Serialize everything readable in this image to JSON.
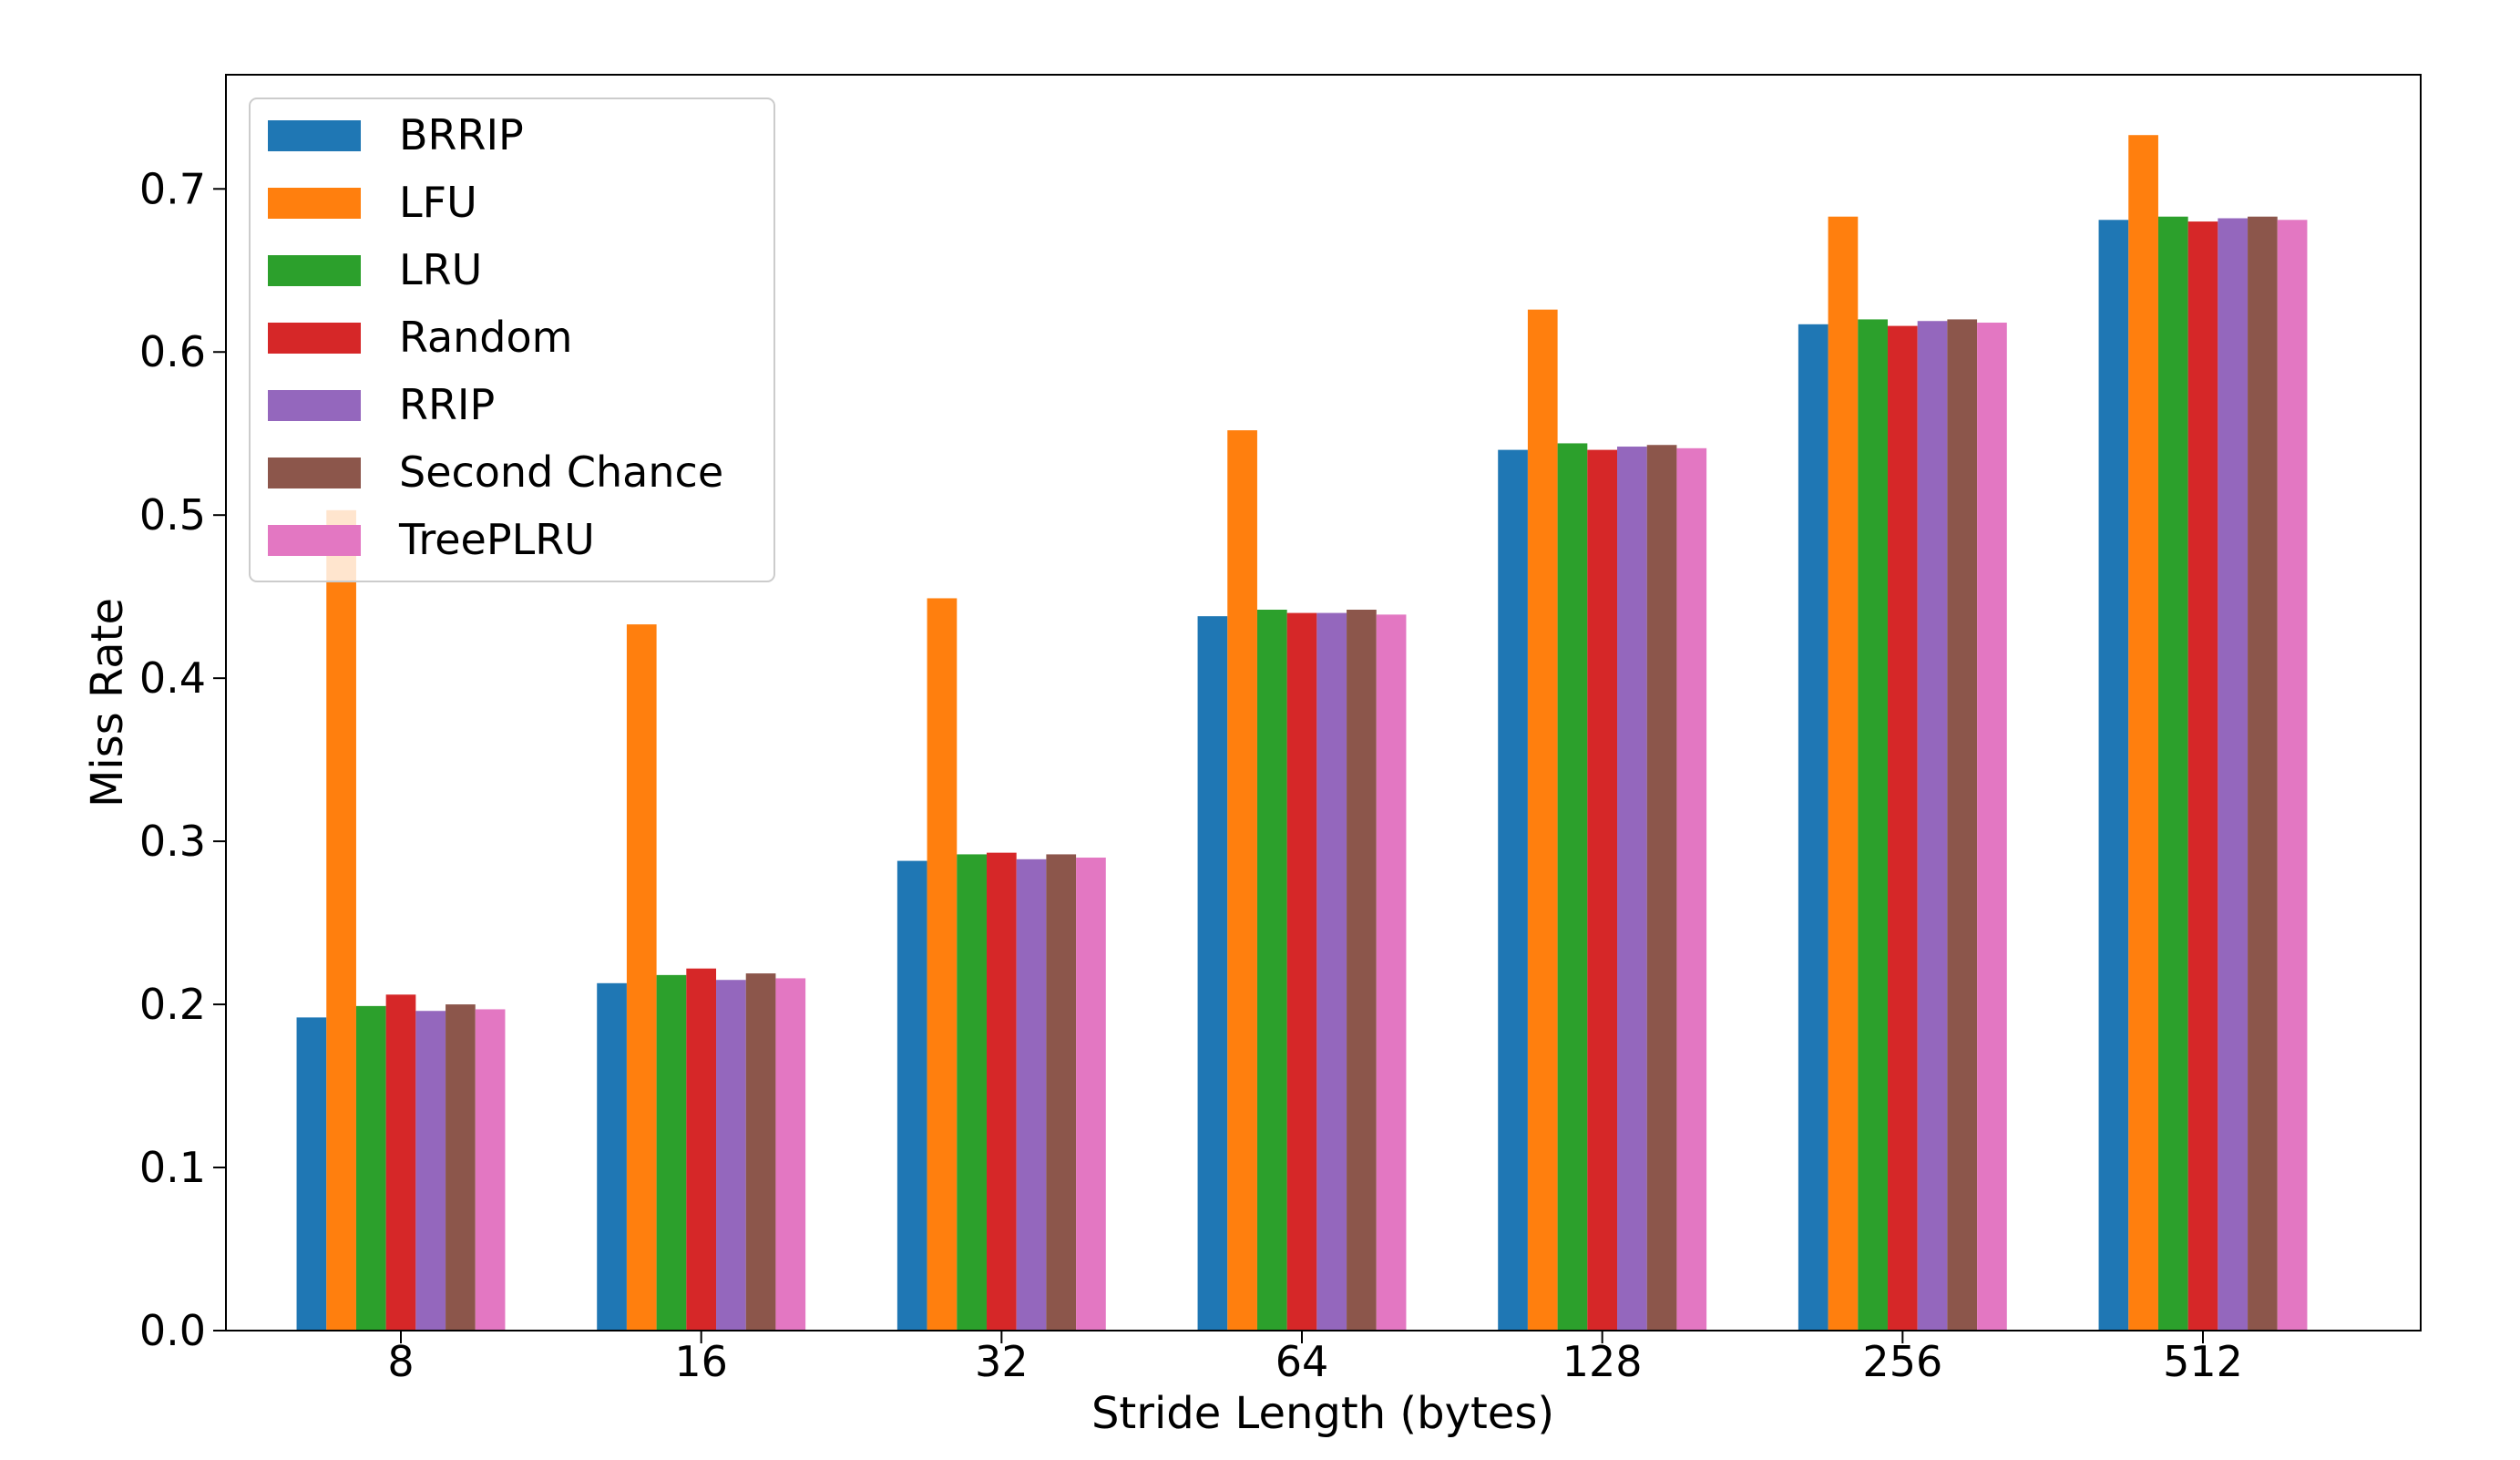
{
  "chart_data": {
    "type": "bar",
    "title": "",
    "xlabel": "Stride Length (bytes)",
    "ylabel": "Miss Rate",
    "categories": [
      "8",
      "16",
      "32",
      "64",
      "128",
      "256",
      "512"
    ],
    "ylim": [
      0,
      0.77
    ],
    "yticks": [
      "0.0",
      "0.1",
      "0.2",
      "0.3",
      "0.4",
      "0.5",
      "0.6",
      "0.7"
    ],
    "grid": false,
    "legend_position": "top-left",
    "series": [
      {
        "name": "BRRIP",
        "color": "#1f77b4",
        "values": [
          0.192,
          0.213,
          0.288,
          0.438,
          0.54,
          0.617,
          0.681
        ]
      },
      {
        "name": "LFU",
        "color": "#ff7f0e",
        "values": [
          0.503,
          0.433,
          0.449,
          0.552,
          0.626,
          0.683,
          0.733
        ]
      },
      {
        "name": "LRU",
        "color": "#2ca02c",
        "values": [
          0.199,
          0.218,
          0.292,
          0.442,
          0.544,
          0.62,
          0.683
        ]
      },
      {
        "name": "Random",
        "color": "#d62728",
        "values": [
          0.206,
          0.222,
          0.293,
          0.44,
          0.54,
          0.616,
          0.68
        ]
      },
      {
        "name": "RRIP",
        "color": "#9467bd",
        "values": [
          0.196,
          0.215,
          0.289,
          0.44,
          0.542,
          0.619,
          0.682
        ]
      },
      {
        "name": "Second Chance",
        "color": "#8c564b",
        "values": [
          0.2,
          0.219,
          0.292,
          0.442,
          0.543,
          0.62,
          0.683
        ]
      },
      {
        "name": "TreePLRU",
        "color": "#e377c2",
        "values": [
          0.197,
          0.216,
          0.29,
          0.439,
          0.541,
          0.618,
          0.681
        ]
      }
    ]
  }
}
